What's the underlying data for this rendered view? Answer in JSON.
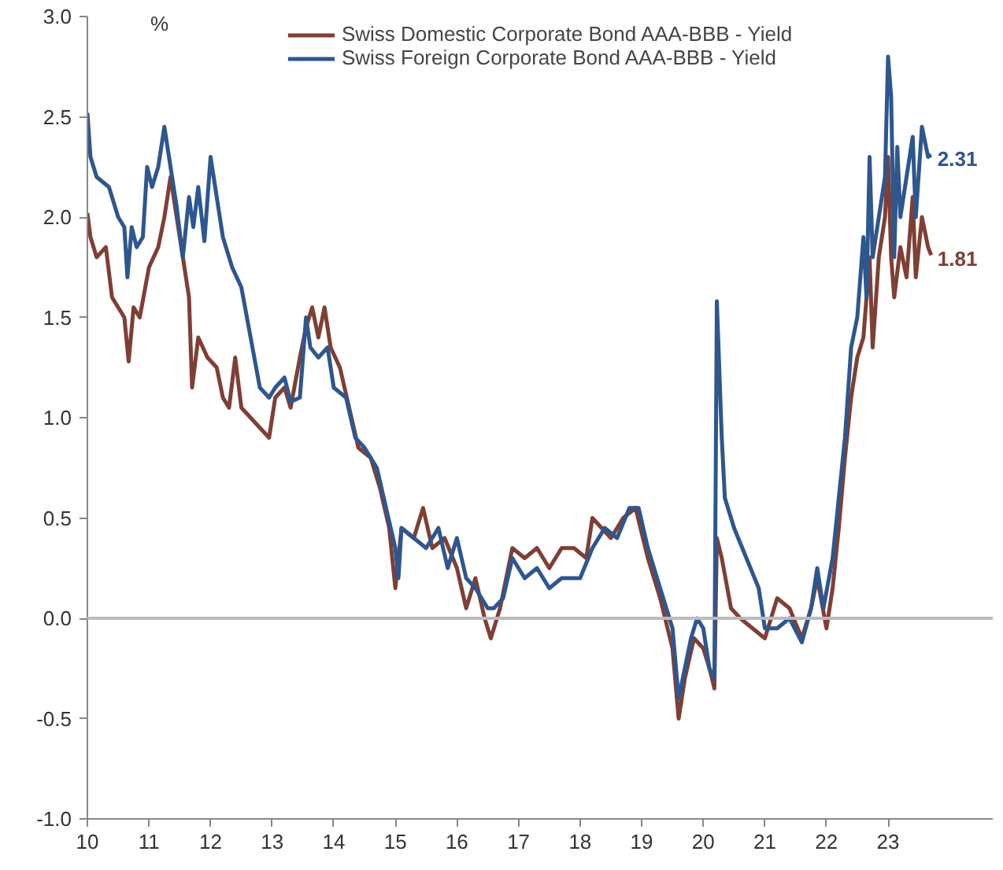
{
  "chart_data": {
    "type": "line",
    "ylabel": "%",
    "xlim": [
      10,
      24.7
    ],
    "ylim": [
      -1.0,
      3.0
    ],
    "xticks": [
      10,
      11,
      12,
      13,
      14,
      15,
      16,
      17,
      18,
      19,
      20,
      21,
      22,
      23
    ],
    "yticks": [
      {
        "value": -1.0,
        "label": "-1.0"
      },
      {
        "value": -0.5,
        "label": "-0.5"
      },
      {
        "value": 0.0,
        "label": "0.0"
      },
      {
        "value": 0.5,
        "label": "0.5"
      },
      {
        "value": 1.0,
        "label": "1.0"
      },
      {
        "value": 1.5,
        "label": "1.5"
      },
      {
        "value": 2.0,
        "label": "2.0"
      },
      {
        "value": 2.5,
        "label": "2.5"
      },
      {
        "value": 3.0,
        "label": "3.0"
      }
    ],
    "grid": false,
    "legend": "top",
    "line_style": "solid",
    "marker": "none",
    "ref_lines": [
      {
        "axis": "y",
        "value": 0,
        "color": "#bbbbbb"
      }
    ],
    "annotations": [
      {
        "text": "2.31",
        "x": 23.7,
        "y": 2.31
      },
      {
        "text": "1.81",
        "x": 23.7,
        "y": 1.81
      }
    ],
    "series": [
      {
        "name": "Swiss Domestic Corporate Bond AAA-BBB - Yield",
        "color": "#7f3f35",
        "x": [
          10.0,
          10.05,
          10.15,
          10.3,
          10.4,
          10.5,
          10.6,
          10.67,
          10.75,
          10.85,
          11.0,
          11.15,
          11.25,
          11.35,
          11.45,
          11.55,
          11.65,
          11.7,
          11.8,
          11.95,
          12.1,
          12.2,
          12.3,
          12.4,
          12.5,
          12.65,
          12.8,
          12.95,
          13.05,
          13.2,
          13.3,
          13.45,
          13.55,
          13.65,
          13.75,
          13.85,
          13.95,
          14.1,
          14.25,
          14.4,
          14.6,
          14.75,
          14.9,
          15.0,
          15.1,
          15.3,
          15.45,
          15.6,
          15.8,
          16.0,
          16.15,
          16.3,
          16.45,
          16.55,
          16.7,
          16.9,
          17.1,
          17.3,
          17.5,
          17.7,
          17.9,
          18.1,
          18.2,
          18.35,
          18.5,
          18.7,
          18.9,
          19.1,
          19.3,
          19.5,
          19.6,
          19.7,
          19.85,
          20.0,
          20.1,
          20.18,
          20.22,
          20.3,
          20.45,
          20.6,
          20.8,
          21.0,
          21.2,
          21.4,
          21.6,
          21.75,
          21.85,
          22.0,
          22.1,
          22.2,
          22.3,
          22.4,
          22.5,
          22.6,
          22.7,
          22.75,
          22.85,
          22.95,
          23.0,
          23.05,
          23.1,
          23.2,
          23.3,
          23.4,
          23.45,
          23.55,
          23.65,
          23.7
        ],
        "values": [
          2.02,
          1.9,
          1.8,
          1.85,
          1.6,
          1.55,
          1.5,
          1.28,
          1.55,
          1.5,
          1.75,
          1.85,
          2.0,
          2.2,
          2.0,
          1.8,
          1.6,
          1.15,
          1.4,
          1.3,
          1.25,
          1.1,
          1.05,
          1.3,
          1.05,
          1.0,
          0.95,
          0.9,
          1.1,
          1.15,
          1.05,
          1.3,
          1.45,
          1.55,
          1.4,
          1.55,
          1.35,
          1.25,
          1.05,
          0.85,
          0.8,
          0.65,
          0.45,
          0.15,
          0.45,
          0.4,
          0.55,
          0.35,
          0.4,
          0.25,
          0.05,
          0.2,
          0.0,
          -0.1,
          0.05,
          0.35,
          0.3,
          0.35,
          0.25,
          0.35,
          0.35,
          0.3,
          0.5,
          0.45,
          0.4,
          0.5,
          0.55,
          0.3,
          0.1,
          -0.15,
          -0.5,
          -0.3,
          -0.1,
          -0.15,
          -0.25,
          -0.35,
          0.4,
          0.3,
          0.05,
          0.0,
          -0.05,
          -0.1,
          0.1,
          0.05,
          -0.1,
          0.05,
          0.2,
          -0.05,
          0.15,
          0.45,
          0.8,
          1.1,
          1.3,
          1.4,
          1.8,
          1.35,
          1.8,
          2.0,
          2.3,
          1.8,
          1.6,
          1.85,
          1.7,
          2.1,
          1.7,
          2.0,
          1.85,
          1.81
        ]
      },
      {
        "name": "Swiss Foreign Corporate Bond AAA-BBB - Yield",
        "color": "#2e568f",
        "x": [
          10.0,
          10.05,
          10.15,
          10.35,
          10.5,
          10.6,
          10.65,
          10.72,
          10.8,
          10.9,
          10.97,
          11.05,
          11.15,
          11.25,
          11.35,
          11.45,
          11.55,
          11.65,
          11.72,
          11.8,
          11.9,
          12.0,
          12.1,
          12.2,
          12.35,
          12.5,
          12.65,
          12.8,
          12.95,
          13.05,
          13.2,
          13.3,
          13.45,
          13.55,
          13.62,
          13.75,
          13.9,
          14.0,
          14.2,
          14.35,
          14.5,
          14.7,
          14.85,
          15.0,
          15.05,
          15.1,
          15.3,
          15.5,
          15.7,
          15.85,
          16.0,
          16.15,
          16.3,
          16.5,
          16.6,
          16.75,
          16.9,
          17.1,
          17.3,
          17.5,
          17.7,
          18.0,
          18.2,
          18.4,
          18.6,
          18.8,
          18.95,
          19.1,
          19.3,
          19.5,
          19.6,
          19.7,
          19.8,
          19.9,
          20.0,
          20.1,
          20.18,
          20.22,
          20.3,
          20.35,
          20.5,
          20.7,
          20.9,
          21.0,
          21.2,
          21.4,
          21.6,
          21.75,
          21.85,
          21.95,
          22.1,
          22.2,
          22.3,
          22.4,
          22.5,
          22.6,
          22.65,
          22.7,
          22.75,
          22.85,
          22.95,
          23.0,
          23.05,
          23.1,
          23.15,
          23.2,
          23.3,
          23.4,
          23.45,
          23.55,
          23.65,
          23.7
        ],
        "values": [
          2.52,
          2.3,
          2.2,
          2.15,
          2.0,
          1.95,
          1.7,
          1.95,
          1.85,
          1.9,
          2.25,
          2.15,
          2.25,
          2.45,
          2.25,
          2.05,
          1.8,
          2.1,
          1.95,
          2.15,
          1.88,
          2.3,
          2.1,
          1.9,
          1.75,
          1.65,
          1.4,
          1.15,
          1.1,
          1.15,
          1.2,
          1.08,
          1.1,
          1.5,
          1.35,
          1.3,
          1.35,
          1.15,
          1.1,
          0.9,
          0.85,
          0.75,
          0.55,
          0.35,
          0.2,
          0.45,
          0.4,
          0.35,
          0.45,
          0.25,
          0.4,
          0.2,
          0.15,
          0.05,
          0.05,
          0.1,
          0.3,
          0.2,
          0.25,
          0.15,
          0.2,
          0.2,
          0.35,
          0.45,
          0.4,
          0.55,
          0.55,
          0.35,
          0.15,
          -0.05,
          -0.4,
          -0.25,
          -0.1,
          0.0,
          -0.05,
          -0.25,
          -0.3,
          1.58,
          0.9,
          0.6,
          0.45,
          0.3,
          0.15,
          -0.05,
          -0.05,
          0.0,
          -0.12,
          0.05,
          0.25,
          0.05,
          0.3,
          0.6,
          0.9,
          1.35,
          1.5,
          1.9,
          1.6,
          2.3,
          1.8,
          2.0,
          2.2,
          2.8,
          2.6,
          1.8,
          2.35,
          2.0,
          2.2,
          2.4,
          2.0,
          2.45,
          2.3,
          2.31
        ]
      }
    ]
  }
}
